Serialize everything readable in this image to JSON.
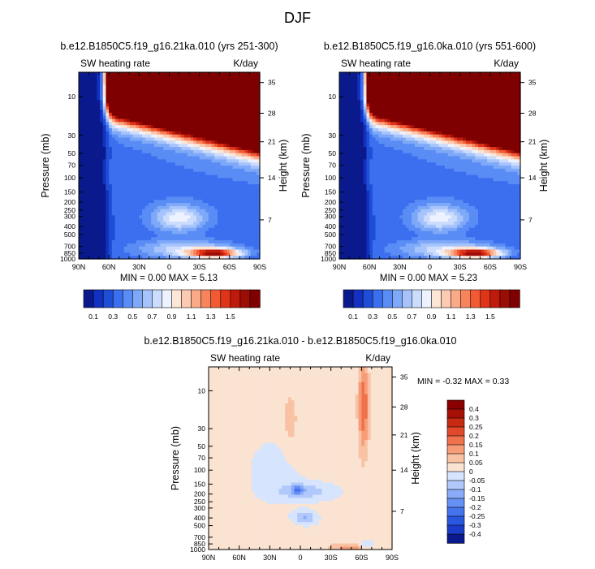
{
  "title": "DJF",
  "colors": {
    "abs_palette": [
      "#0a1a8c",
      "#1330c0",
      "#1f4ed6",
      "#3c6ef0",
      "#5a8cf5",
      "#7ea8f8",
      "#a6c4fb",
      "#cbdcfd",
      "#eef2fe",
      "#fde6d6",
      "#fccab0",
      "#fbaa88",
      "#f8845c",
      "#f35a34",
      "#e03418",
      "#c01a0c",
      "#9c0d06",
      "#7e0000"
    ],
    "diff_palette": [
      "#0a1a8c",
      "#1a3cc8",
      "#2a57e0",
      "#4573ee",
      "#6690f4",
      "#8aabf8",
      "#b0c8fb",
      "#d6e4fd",
      "#fbe3d2",
      "#f9c2a4",
      "#f69d78",
      "#f0724c",
      "#e04a2a",
      "#c62a12",
      "#a50f06",
      "#8a0000"
    ]
  },
  "chart_data": [
    {
      "type": "heatmap",
      "title": "b.e12.B1850C5.f19_g16.21ka.010 (yrs 251-300)",
      "left_string": "SW heating rate",
      "right_string": "K/day",
      "ylabel": "Pressure (mb)",
      "right_axis_label": "Height (km)",
      "x_ticks": [
        "90N",
        "60N",
        "30N",
        "0",
        "30S",
        "60S",
        "90S"
      ],
      "x_values": [
        90,
        60,
        30,
        0,
        -30,
        -60,
        -90
      ],
      "y_ticks": [
        "10",
        "30",
        "50",
        "70",
        "100",
        "150",
        "200",
        "250",
        "300",
        "400",
        "500",
        "700",
        "850",
        "1000"
      ],
      "y_values": [
        10,
        30,
        50,
        70,
        100,
        150,
        200,
        250,
        300,
        400,
        500,
        700,
        850,
        1000
      ],
      "right_ticks": [
        "35",
        "28",
        "21",
        "14",
        "7"
      ],
      "right_tick_pressure": [
        6.7,
        16,
        36,
        100,
        330
      ],
      "ylim": [
        1000,
        5
      ],
      "min_text": "MIN =   0.00  MAX =   5.13",
      "min": 0.0,
      "max": 5.13,
      "colorbar_labels": [
        "0.1",
        "0.3",
        "0.5",
        "0.7",
        "0.9",
        "1.1",
        "1.3",
        "1.5"
      ],
      "colorbar_levels": [
        0.1,
        0.2,
        0.3,
        0.4,
        0.5,
        0.6,
        0.7,
        0.8,
        0.9,
        1.0,
        1.1,
        1.2,
        1.3,
        1.4,
        1.5,
        1.6
      ]
    },
    {
      "type": "heatmap",
      "title": "b.e12.B1850C5.f19_g16.0ka.010 (yrs 551-600)",
      "left_string": "SW heating rate",
      "right_string": "K/day",
      "ylabel": "Pressure (mb)",
      "right_axis_label": "Height (km)",
      "x_ticks": [
        "90N",
        "60N",
        "30N",
        "0",
        "30S",
        "60S",
        "90S"
      ],
      "x_values": [
        90,
        60,
        30,
        0,
        -30,
        -60,
        -90
      ],
      "y_ticks": [
        "10",
        "30",
        "50",
        "70",
        "100",
        "150",
        "200",
        "250",
        "300",
        "400",
        "500",
        "700",
        "850",
        "1000"
      ],
      "y_values": [
        10,
        30,
        50,
        70,
        100,
        150,
        200,
        250,
        300,
        400,
        500,
        700,
        850,
        1000
      ],
      "right_ticks": [
        "35",
        "28",
        "21",
        "14",
        "7"
      ],
      "right_tick_pressure": [
        6.7,
        16,
        36,
        100,
        330
      ],
      "ylim": [
        1000,
        5
      ],
      "min_text": "MIN =   0.00  MAX =   5.23",
      "min": 0.0,
      "max": 5.23,
      "colorbar_labels": [
        "0.1",
        "0.3",
        "0.5",
        "0.7",
        "0.9",
        "1.1",
        "1.3",
        "1.5"
      ],
      "colorbar_levels": [
        0.1,
        0.2,
        0.3,
        0.4,
        0.5,
        0.6,
        0.7,
        0.8,
        0.9,
        1.0,
        1.1,
        1.2,
        1.3,
        1.4,
        1.5,
        1.6
      ]
    },
    {
      "type": "heatmap",
      "title": "b.e12.B1850C5.f19_g16.21ka.010 - b.e12.B1850C5.f19_g16.0ka.010",
      "left_string": "SW heating rate",
      "right_string": "K/day",
      "ylabel": "Pressure (mb)",
      "right_axis_label": "Height (km)",
      "x_ticks": [
        "90N",
        "60N",
        "30N",
        "0",
        "30S",
        "60S",
        "90S"
      ],
      "x_values": [
        90,
        60,
        30,
        0,
        -30,
        -60,
        -90
      ],
      "y_ticks": [
        "10",
        "30",
        "50",
        "70",
        "100",
        "150",
        "200",
        "250",
        "300",
        "400",
        "500",
        "700",
        "850",
        "1000"
      ],
      "y_values": [
        10,
        30,
        50,
        70,
        100,
        150,
        200,
        250,
        300,
        400,
        500,
        700,
        850,
        1000
      ],
      "right_ticks": [
        "35",
        "28",
        "21",
        "14",
        "7"
      ],
      "right_tick_pressure": [
        6.7,
        16,
        36,
        100,
        330
      ],
      "ylim": [
        1000,
        5
      ],
      "min_text": "MIN =  -0.32  MAX =   0.33",
      "min": -0.32,
      "max": 0.33,
      "colorbar_labels": [
        "0.4",
        "0.3",
        "0.25",
        "0.2",
        "0.15",
        "0.1",
        "0.05",
        "0",
        "-0.05",
        "-0.1",
        "-0.15",
        "-0.2",
        "-0.25",
        "-0.3",
        "-0.4"
      ],
      "colorbar_levels": [
        -0.4,
        -0.3,
        -0.25,
        -0.2,
        -0.15,
        -0.1,
        -0.05,
        0,
        0.05,
        0.1,
        0.15,
        0.2,
        0.25,
        0.3,
        0.4
      ]
    }
  ]
}
